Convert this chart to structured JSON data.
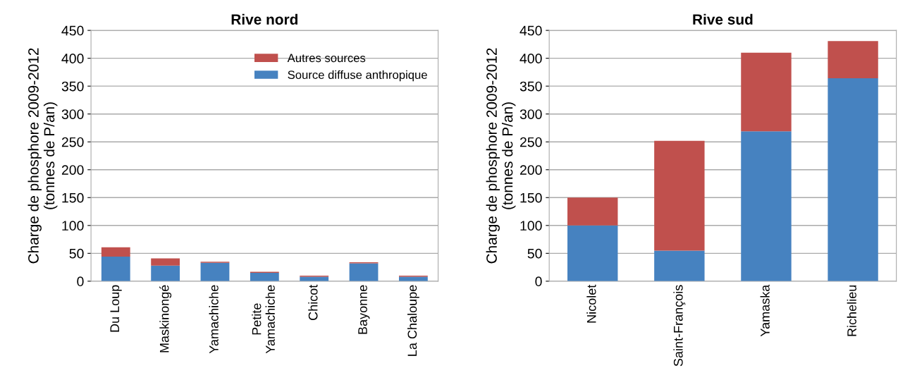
{
  "chart_data": [
    {
      "type": "bar",
      "title": "Rive nord",
      "ylabel": "Charge de phosphore 2009-2012\n(tonnes de P/an)",
      "categories": [
        "Du Loup",
        "Maskinongé",
        "Yamachiche",
        "Petite\nYamachiche",
        "Chicot",
        "Bayonne",
        "La Chaloupe"
      ],
      "stacked": true,
      "series": [
        {
          "name": "Source diffuse anthropique",
          "color": "#4682c0",
          "values": [
            44,
            28,
            33,
            15,
            8,
            32,
            8
          ]
        },
        {
          "name": "Autres sources",
          "color": "#c0504d",
          "values": [
            17,
            13,
            2,
            2,
            2,
            2,
            2
          ]
        }
      ],
      "ylim": [
        0,
        450
      ],
      "yticks": [
        0,
        50,
        100,
        150,
        200,
        250,
        300,
        350,
        400,
        450
      ],
      "grid": "y",
      "legend": "top right"
    },
    {
      "type": "bar",
      "title": "Rive sud",
      "ylabel": "Charge de phosphore 2009-2012\n(tonnes de P/an)",
      "categories": [
        "Nicolet",
        "Saint-François",
        "Yamaska",
        "Richelieu"
      ],
      "stacked": true,
      "series": [
        {
          "color": "#4682c0",
          "values": [
            100,
            55,
            269,
            364
          ]
        },
        {
          "color": "#c0504d",
          "values": [
            50,
            197,
            141,
            67
          ]
        }
      ],
      "ylim": [
        0,
        450
      ],
      "yticks": [
        0,
        50,
        100,
        150,
        200,
        250,
        300,
        350,
        400,
        450
      ],
      "grid": "y"
    }
  ]
}
